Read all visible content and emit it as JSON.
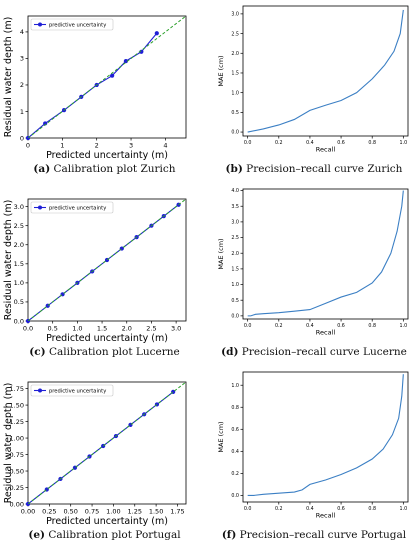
{
  "figures": [
    {
      "id": "a",
      "caption_letter": "(a)",
      "caption_text": "Calibration plot Zurich",
      "chart_data": {
        "type": "line",
        "xlabel": "Predicted uncertainty (m)",
        "ylabel": "Residual water depth (m)",
        "xlim": [
          0,
          4.6
        ],
        "ylim": [
          0,
          4.6
        ],
        "xticks": [
          0,
          1,
          2,
          3,
          4
        ],
        "yticks": [
          0,
          1,
          2,
          3,
          4
        ],
        "legend": "upper-left",
        "series": [
          {
            "name": "predictive uncertainty",
            "color": "#1f1fd6",
            "marker": "circle",
            "x": [
              0.0,
              0.5,
              1.05,
              1.55,
              2.0,
              2.45,
              2.85,
              3.3,
              3.75
            ],
            "y": [
              0.0,
              0.55,
              1.05,
              1.55,
              2.0,
              2.35,
              2.9,
              3.25,
              3.95
            ]
          },
          {
            "name": "",
            "color": "#2ca02c",
            "style": "dashed",
            "x": [
              0,
              4.6
            ],
            "y": [
              0,
              4.6
            ]
          }
        ]
      }
    },
    {
      "id": "b",
      "caption_letter": "(b)",
      "caption_text": "Precision–recall curve Zurich",
      "chart_data": {
        "type": "line",
        "xlabel": "Recall",
        "ylabel": "MAE (cm)",
        "xlim": [
          -0.03,
          1.03
        ],
        "ylim": [
          -0.1,
          3.2
        ],
        "xticks": [
          0.0,
          0.2,
          0.4,
          0.6,
          0.8,
          1.0
        ],
        "yticks": [
          0.0,
          0.5,
          1.0,
          1.5,
          2.0,
          2.5,
          3.0
        ],
        "series": [
          {
            "name": "",
            "color": "#3b7fc4",
            "x": [
              0.0,
              0.1,
              0.2,
              0.3,
              0.4,
              0.5,
              0.6,
              0.7,
              0.8,
              0.88,
              0.94,
              0.98,
              1.0
            ],
            "y": [
              0.0,
              0.08,
              0.18,
              0.32,
              0.55,
              0.68,
              0.8,
              1.0,
              1.35,
              1.7,
              2.05,
              2.5,
              3.1
            ]
          }
        ]
      }
    },
    {
      "id": "c",
      "caption_letter": "(c)",
      "caption_text": "Calibration plot Lucerne",
      "chart_data": {
        "type": "line",
        "xlabel": "Predicted uncertainty (m)",
        "ylabel": "Residual water depth (m)",
        "xlim": [
          0,
          3.2
        ],
        "ylim": [
          0,
          3.2
        ],
        "xticks": [
          0.0,
          0.5,
          1.0,
          1.5,
          2.0,
          2.5,
          3.0
        ],
        "yticks": [
          0.0,
          0.5,
          1.0,
          1.5,
          2.0,
          2.5,
          3.0
        ],
        "legend": "upper-left",
        "series": [
          {
            "name": "predictive uncertainty",
            "color": "#1f1fd6",
            "marker": "circle",
            "x": [
              0.0,
              0.4,
              0.7,
              1.0,
              1.3,
              1.6,
              1.9,
              2.2,
              2.5,
              2.75,
              3.05
            ],
            "y": [
              0.0,
              0.4,
              0.7,
              1.0,
              1.3,
              1.6,
              1.9,
              2.2,
              2.5,
              2.75,
              3.05
            ]
          },
          {
            "name": "",
            "color": "#2ca02c",
            "style": "dashed",
            "x": [
              0,
              3.2
            ],
            "y": [
              0,
              3.2
            ]
          }
        ]
      }
    },
    {
      "id": "d",
      "caption_letter": "(d)",
      "caption_text": "Precision–recall curve Lucerne",
      "chart_data": {
        "type": "line",
        "xlabel": "Recall",
        "ylabel": "MAE (cm)",
        "xlim": [
          -0.03,
          1.03
        ],
        "ylim": [
          -0.1,
          4.05
        ],
        "xticks": [
          0.0,
          0.2,
          0.4,
          0.6,
          0.8,
          1.0
        ],
        "yticks": [
          0.0,
          0.5,
          1.0,
          1.5,
          2.0,
          2.5,
          3.0,
          3.5,
          4.0
        ],
        "series": [
          {
            "name": "",
            "color": "#3b7fc4",
            "x": [
              0.0,
              0.02,
              0.05,
              0.1,
              0.2,
              0.3,
              0.4,
              0.5,
              0.6,
              0.7,
              0.8,
              0.86,
              0.92,
              0.96,
              0.99,
              1.0
            ],
            "y": [
              0.0,
              0.0,
              0.05,
              0.07,
              0.1,
              0.15,
              0.2,
              0.4,
              0.6,
              0.75,
              1.05,
              1.4,
              2.0,
              2.7,
              3.5,
              4.0
            ]
          }
        ]
      }
    },
    {
      "id": "e",
      "caption_letter": "(e)",
      "caption_text": "Calibration plot Portugal",
      "chart_data": {
        "type": "line",
        "xlabel": "Predicted uncertainty (m)",
        "ylabel": "Residual water depth (m)",
        "xlim": [
          0,
          1.85
        ],
        "ylim": [
          0,
          1.85
        ],
        "xticks": [
          0.0,
          0.25,
          0.5,
          0.75,
          1.0,
          1.25,
          1.5,
          1.75
        ],
        "yticks": [
          0.0,
          0.25,
          0.5,
          0.75,
          1.0,
          1.25,
          1.5,
          1.75
        ],
        "legend": "upper-left",
        "series": [
          {
            "name": "predictive uncertainty",
            "color": "#1f1fd6",
            "marker": "circle",
            "x": [
              0.0,
              0.22,
              0.38,
              0.55,
              0.72,
              0.88,
              1.03,
              1.2,
              1.36,
              1.51,
              1.7
            ],
            "y": [
              0.0,
              0.22,
              0.38,
              0.55,
              0.72,
              0.88,
              1.03,
              1.2,
              1.36,
              1.51,
              1.7
            ]
          },
          {
            "name": "",
            "color": "#2ca02c",
            "style": "dashed",
            "x": [
              0,
              1.85
            ],
            "y": [
              0,
              1.85
            ]
          }
        ]
      }
    },
    {
      "id": "f",
      "caption_letter": "(f)",
      "caption_text": "Precision–recall curve Portugal",
      "chart_data": {
        "type": "line",
        "xlabel": "Recall",
        "ylabel": "MAE (cm)",
        "xlim": [
          -0.03,
          1.03
        ],
        "ylim": [
          -0.06,
          1.12
        ],
        "xticks": [
          0.0,
          0.2,
          0.4,
          0.6,
          0.8,
          1.0
        ],
        "yticks": [
          0.0,
          0.2,
          0.4,
          0.6,
          0.8,
          1.0
        ],
        "series": [
          {
            "name": "",
            "color": "#3b7fc4",
            "x": [
              0.0,
              0.04,
              0.1,
              0.2,
              0.3,
              0.35,
              0.4,
              0.5,
              0.6,
              0.7,
              0.8,
              0.87,
              0.93,
              0.97,
              0.99,
              1.0
            ],
            "y": [
              0.0,
              0.0,
              0.01,
              0.02,
              0.03,
              0.05,
              0.1,
              0.14,
              0.19,
              0.25,
              0.33,
              0.42,
              0.55,
              0.7,
              0.9,
              1.1
            ]
          }
        ]
      }
    }
  ]
}
